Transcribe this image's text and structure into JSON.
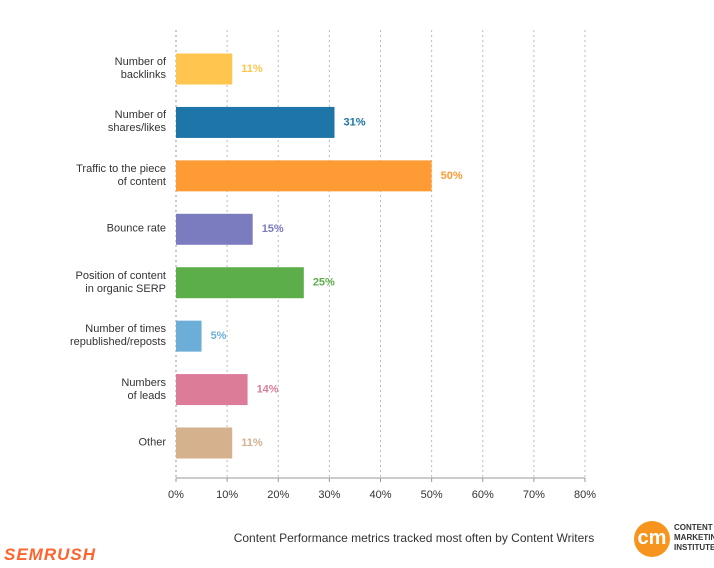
{
  "chart_data": {
    "type": "bar",
    "orientation": "horizontal",
    "caption": "Content Performance metrics tracked most often by Content Writers",
    "logos": {
      "left": "SEMRUSH",
      "right_mark": "cm",
      "right_text": "CONTENT\nMARKETING\nINSTITUTE"
    },
    "categories": [
      "Number of\nbacklinks",
      "Number of\nshares/likes",
      "Traffic to the piece\nof content",
      "Bounce rate",
      "Position of content\nin organic SERP",
      "Number of times\nrepublished/reposts",
      "Numbers\nof leads",
      "Other"
    ],
    "values": [
      11,
      31,
      50,
      15,
      25,
      5,
      14,
      11
    ],
    "value_labels": [
      "11%",
      "31%",
      "50%",
      "15%",
      "25%",
      "5%",
      "14%",
      "11%"
    ],
    "colors": [
      "#ffc54e",
      "#1e75a7",
      "#ff9b35",
      "#7b7bbf",
      "#5cae4b",
      "#6daed8",
      "#dc7c98",
      "#d5b18d"
    ],
    "xlim": [
      0,
      80
    ],
    "xticks": [
      {
        "value": 0,
        "label": "0%"
      },
      {
        "value": 10,
        "label": "10%"
      },
      {
        "value": 20,
        "label": "20%"
      },
      {
        "value": 30,
        "label": "30%"
      },
      {
        "value": 40,
        "label": "40%"
      },
      {
        "value": 50,
        "label": "50%"
      },
      {
        "value": 60,
        "label": "60%"
      },
      {
        "value": 70,
        "label": "70%"
      },
      {
        "value": 80,
        "label": "80%"
      }
    ],
    "grid": true
  }
}
